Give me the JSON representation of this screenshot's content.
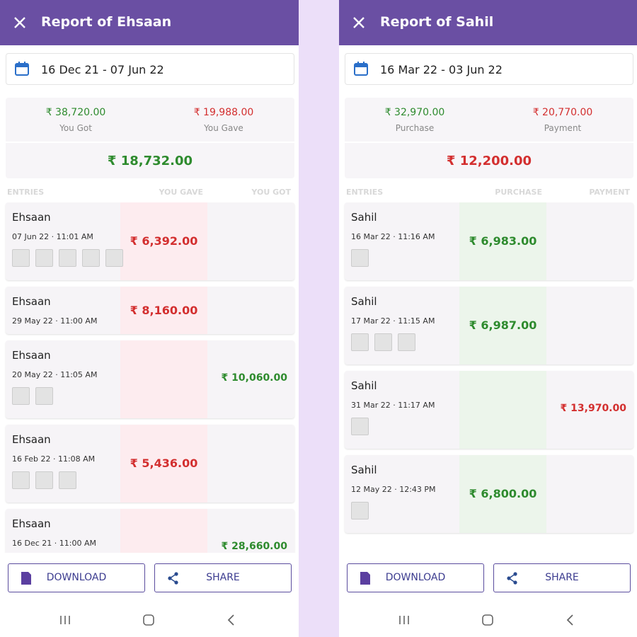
{
  "screens": [
    {
      "title": "Report of Ehsaan",
      "date_range": "16 Dec 21 - 07 Jun 22",
      "summary": {
        "left_amount": "₹ 38,720.00",
        "left_label": "You Got",
        "right_amount": "₹ 19,988.00",
        "right_label": "You Gave",
        "net": "₹ 18,732.00"
      },
      "columns": [
        "ENTRIES",
        "YOU GAVE",
        "YOU GOT"
      ],
      "entries": [
        {
          "name": "Ehsaan",
          "datetime": "07 Jun 22 · 11:01 AM",
          "amounts": [
            "₹ 6,392.00",
            null
          ]
        },
        {
          "name": "Ehsaan",
          "datetime": "29 May 22 · 11:00 AM",
          "amounts": [
            "₹ 8,160.00",
            null
          ]
        },
        {
          "name": "Ehsaan",
          "datetime": "20 May 22 · 11:05 AM",
          "amounts": [
            null,
            "₹ 10,060.00"
          ]
        },
        {
          "name": "Ehsaan",
          "datetime": "16 Feb 22 · 11:08 AM",
          "amounts": [
            "₹ 5,436.00",
            null
          ]
        },
        {
          "name": "Ehsaan",
          "datetime": "16 Dec 21 · 11:00 AM",
          "amounts": [
            null,
            "₹ 28,660.00"
          ]
        }
      ],
      "buttons": [
        "DOWNLOAD",
        "SHARE"
      ]
    },
    {
      "title": "Report of Sahil",
      "date_range": "16 Mar 22 - 03 Jun 22",
      "summary": {
        "left_amount": "₹ 32,970.00",
        "left_label": "Purchase",
        "right_amount": "₹ 20,770.00",
        "right_label": "Payment",
        "net": "₹ 12,200.00"
      },
      "columns": [
        "ENTRIES",
        "PURCHASE",
        "PAYMENT"
      ],
      "entries": [
        {
          "name": "Sahil",
          "datetime": "16 Mar 22 · 11:16 AM",
          "amounts": [
            "₹ 6,983.00",
            null
          ]
        },
        {
          "name": "Sahil",
          "datetime": "17 Mar 22 · 11:15 AM",
          "amounts": [
            "₹ 6,987.00",
            null
          ]
        },
        {
          "name": "Sahil",
          "datetime": "31 Mar 22 · 11:17 AM",
          "amounts": [
            null,
            "₹ 13,970.00"
          ]
        },
        {
          "name": "Sahil",
          "datetime": "12 May 22 · 12:43 PM",
          "amounts": [
            "₹ 6,800.00",
            null
          ]
        }
      ],
      "buttons": [
        "DOWNLOAD",
        "SHARE"
      ]
    }
  ]
}
